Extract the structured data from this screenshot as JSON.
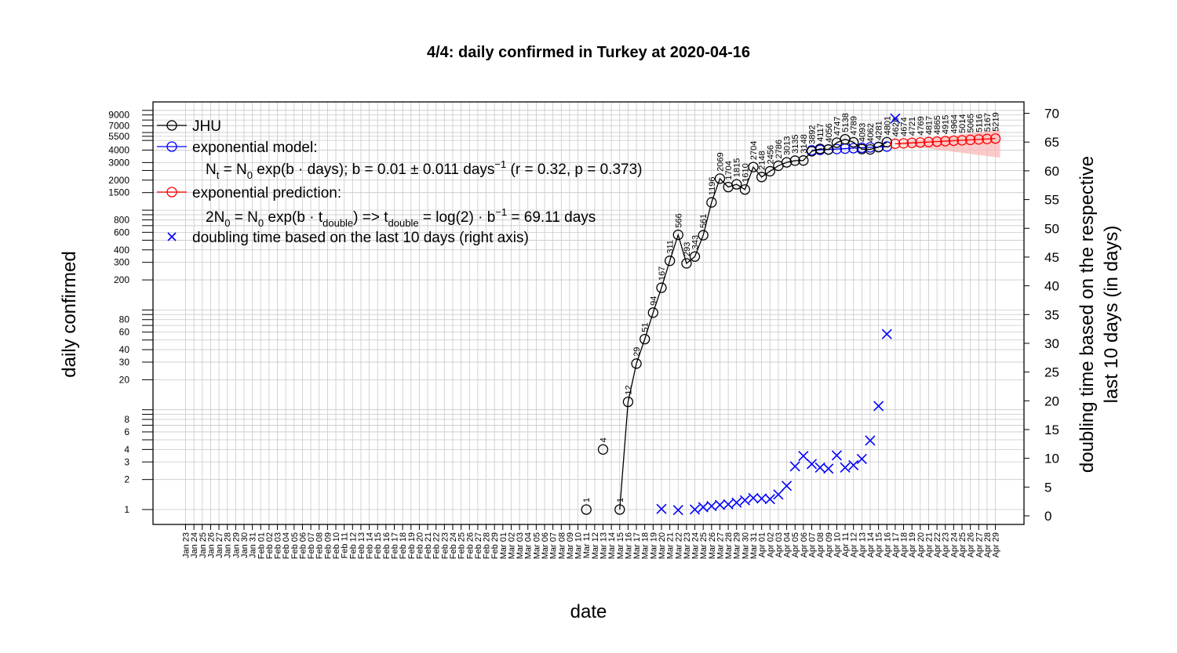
{
  "chart_data": {
    "type": "line",
    "title": "4/4: daily confirmed in Turkey at 2020-04-16",
    "xlabel": "date",
    "ylabel": "daily confirmed",
    "y2label_line1": "doubling time based on the respective",
    "y2label_line2": "last 10 days (in days)",
    "y_scale": "log",
    "ylim": [
      0.75,
      12000
    ],
    "y2lim": [
      0,
      70
    ],
    "grid": true,
    "y_ticks": [
      1,
      2,
      3,
      4,
      6,
      8,
      20,
      30,
      40,
      60,
      80,
      200,
      300,
      400,
      600,
      800,
      1500,
      2000,
      3000,
      4000,
      5500,
      7000,
      9000
    ],
    "y_minor": [
      5,
      7,
      9,
      10,
      50,
      70,
      90,
      100,
      500,
      700,
      900,
      1000,
      2500,
      5000,
      6000,
      8000,
      10000
    ],
    "y2_ticks": [
      0,
      5,
      10,
      15,
      20,
      25,
      30,
      35,
      40,
      45,
      50,
      55,
      60,
      65,
      70
    ],
    "start_date": "2020-01-23",
    "end_date": "2020-04-29",
    "legend": {
      "position": "top-left",
      "entries": [
        {
          "label": "JHU",
          "color": "#000000",
          "symbol": "line-circle"
        },
        {
          "label": "exponential model:",
          "color": "#0000ff",
          "symbol": "line-circle"
        },
        {
          "label": "exponential prediction:",
          "color": "#ff0000",
          "symbol": "line-circle"
        },
        {
          "label": "doubling time based on the last  10  days (right axis)",
          "color": "#0000ff",
          "symbol": "cross"
        }
      ]
    },
    "annotations": {
      "model_a": "N",
      "model_a_sub": "t",
      "model_b": " = N",
      "model_b_sub": "0",
      "model_c": " exp(b · days); b = 0.01 ± 0.011 days",
      "model_c_sup": "−1",
      "model_d": " (r = 0.32, p = 0.373)",
      "pred_a": "2N",
      "pred_a_sub": "0",
      "pred_b": " = N",
      "pred_b_sub": "0",
      "pred_c": " exp(b · t",
      "pred_c_sub": "double",
      "pred_d": ") => t",
      "pred_d_sub": "double",
      "pred_e": " = log(2) · b",
      "pred_e_sup": "−1",
      "pred_f": " = 69.11 days"
    },
    "series": [
      {
        "name": "JHU",
        "color": "#000000",
        "points": [
          [
            "2020-03-11",
            1
          ],
          [
            "2020-03-13",
            4
          ],
          [
            "2020-03-15",
            1
          ],
          [
            "2020-03-16",
            12
          ],
          [
            "2020-03-17",
            29
          ],
          [
            "2020-03-18",
            51
          ],
          [
            "2020-03-19",
            94
          ],
          [
            "2020-03-20",
            167
          ],
          [
            "2020-03-21",
            311
          ],
          [
            "2020-03-22",
            566
          ],
          [
            "2020-03-23",
            293
          ],
          [
            "2020-03-24",
            343
          ],
          [
            "2020-03-25",
            561
          ],
          [
            "2020-03-26",
            1196
          ],
          [
            "2020-03-27",
            2069
          ],
          [
            "2020-03-28",
            1704
          ],
          [
            "2020-03-29",
            1815
          ],
          [
            "2020-03-30",
            1610
          ],
          [
            "2020-03-31",
            2704
          ],
          [
            "2020-04-01",
            2148
          ],
          [
            "2020-04-02",
            2456
          ],
          [
            "2020-04-03",
            2786
          ],
          [
            "2020-04-04",
            3013
          ],
          [
            "2020-04-05",
            3135
          ],
          [
            "2020-04-06",
            3148
          ],
          [
            "2020-04-07",
            3892
          ],
          [
            "2020-04-08",
            4117
          ],
          [
            "2020-04-09",
            4056
          ],
          [
            "2020-04-10",
            4747
          ],
          [
            "2020-04-11",
            5138
          ],
          [
            "2020-04-12",
            4789
          ],
          [
            "2020-04-13",
            4093
          ],
          [
            "2020-04-14",
            4062
          ],
          [
            "2020-04-15",
            4281
          ],
          [
            "2020-04-16",
            4801
          ]
        ]
      },
      {
        "name": "exponential model",
        "color": "#0000ff",
        "points": [
          [
            "2020-04-07",
            3980
          ],
          [
            "2020-04-08",
            4020
          ],
          [
            "2020-04-09",
            4060
          ],
          [
            "2020-04-10",
            4100
          ],
          [
            "2020-04-11",
            4140
          ],
          [
            "2020-04-12",
            4180
          ],
          [
            "2020-04-13",
            4220
          ],
          [
            "2020-04-14",
            4260
          ],
          [
            "2020-04-15",
            4300
          ],
          [
            "2020-04-16",
            4340
          ]
        ]
      },
      {
        "name": "exponential prediction",
        "color": "#ff0000",
        "points": [
          [
            "2020-04-17",
            4628
          ],
          [
            "2020-04-18",
            4674
          ],
          [
            "2020-04-19",
            4721
          ],
          [
            "2020-04-20",
            4769
          ],
          [
            "2020-04-21",
            4817
          ],
          [
            "2020-04-22",
            4865
          ],
          [
            "2020-04-23",
            4915
          ],
          [
            "2020-04-24",
            4964
          ],
          [
            "2020-04-25",
            5014
          ],
          [
            "2020-04-26",
            5065
          ],
          [
            "2020-04-27",
            5116
          ],
          [
            "2020-04-28",
            5167
          ],
          [
            "2020-04-29",
            5219
          ]
        ],
        "band_upper": 6400,
        "band_lower": 3350,
        "band_color": "#f9b8b8"
      },
      {
        "name": "doubling time based on the last  10  days (right axis)",
        "color": "#0000ff",
        "axis": "right",
        "marker": "cross",
        "points": [
          [
            "2020-03-20",
            1.2
          ],
          [
            "2020-03-22",
            1.0
          ],
          [
            "2020-03-24",
            1.1
          ],
          [
            "2020-03-25",
            1.5
          ],
          [
            "2020-03-26",
            1.7
          ],
          [
            "2020-03-27",
            1.9
          ],
          [
            "2020-03-28",
            2.0
          ],
          [
            "2020-03-29",
            2.3
          ],
          [
            "2020-03-30",
            2.7
          ],
          [
            "2020-03-31",
            3.1
          ],
          [
            "2020-04-01",
            3.0
          ],
          [
            "2020-04-02",
            2.9
          ],
          [
            "2020-04-03",
            3.7
          ],
          [
            "2020-04-04",
            5.2
          ],
          [
            "2020-04-05",
            8.6
          ],
          [
            "2020-04-06",
            10.4
          ],
          [
            "2020-04-07",
            9.0
          ],
          [
            "2020-04-08",
            8.4
          ],
          [
            "2020-04-09",
            8.2
          ],
          [
            "2020-04-10",
            10.5
          ],
          [
            "2020-04-11",
            8.4
          ],
          [
            "2020-04-12",
            8.8
          ],
          [
            "2020-04-13",
            9.9
          ],
          [
            "2020-04-14",
            13.1
          ],
          [
            "2020-04-15",
            19.1
          ],
          [
            "2020-04-16",
            31.6
          ],
          [
            "2020-04-17",
            69.1
          ]
        ]
      }
    ]
  }
}
